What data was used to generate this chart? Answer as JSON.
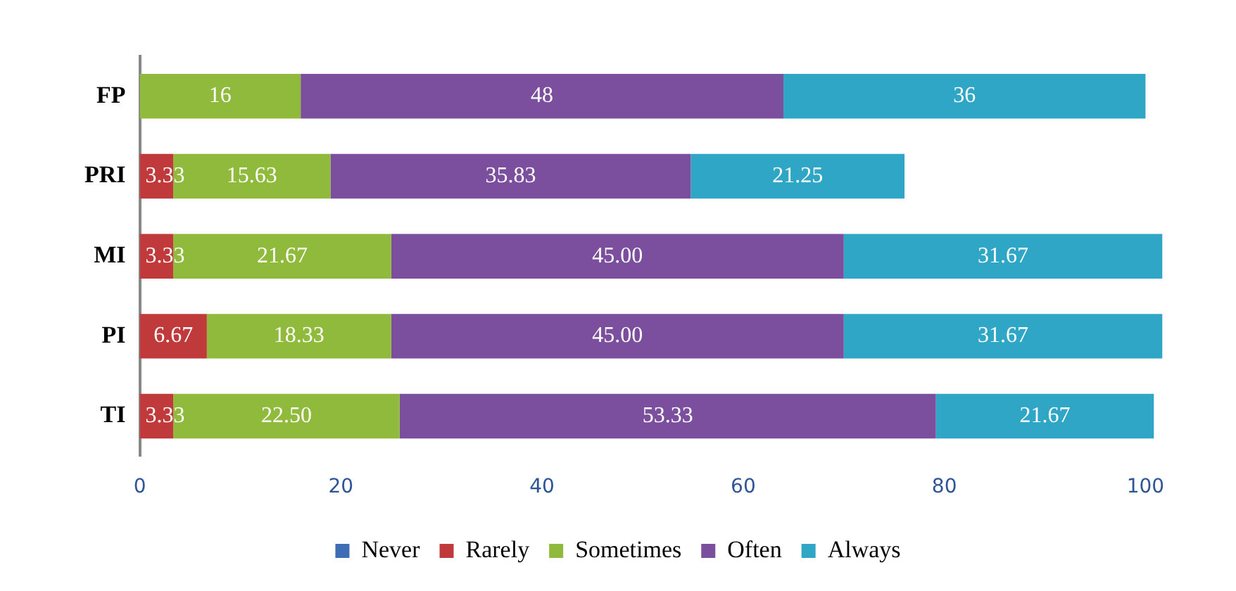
{
  "chart_data": {
    "type": "bar",
    "orientation": "horizontal",
    "stacked": true,
    "categories": [
      "FP",
      "PRI",
      "MI",
      "PI",
      "TI"
    ],
    "series": [
      {
        "name": "Never",
        "color": "#3e6db5",
        "values": [
          null,
          null,
          null,
          null,
          null
        ]
      },
      {
        "name": "Rarely",
        "color": "#c0393b",
        "values": [
          null,
          3.33,
          3.33,
          6.67,
          3.33
        ],
        "value_labels": [
          null,
          "3.33",
          "3.33",
          "6.67",
          "3.33"
        ]
      },
      {
        "name": "Sometimes",
        "color": "#8fba3c",
        "values": [
          16,
          15.63,
          21.67,
          18.33,
          22.5
        ],
        "value_labels": [
          "16",
          "15.63",
          "21.67",
          "18.33",
          "22.50"
        ]
      },
      {
        "name": "Often",
        "color": "#7b4f9d",
        "values": [
          48,
          35.83,
          45,
          45,
          53.33
        ],
        "value_labels": [
          "48",
          "35.83",
          "45.00",
          "45.00",
          "53.33"
        ]
      },
      {
        "name": "Always",
        "color": "#2fa6c6",
        "values": [
          36,
          21.25,
          31.67,
          31.67,
          21.67
        ],
        "value_labels": [
          "36",
          "21.25",
          "31.67",
          "31.67",
          "21.67"
        ]
      }
    ],
    "xlim": [
      0,
      102
    ],
    "xticks": [
      0,
      20,
      40,
      60,
      80,
      100
    ],
    "grid": false,
    "legend": "bottom"
  }
}
